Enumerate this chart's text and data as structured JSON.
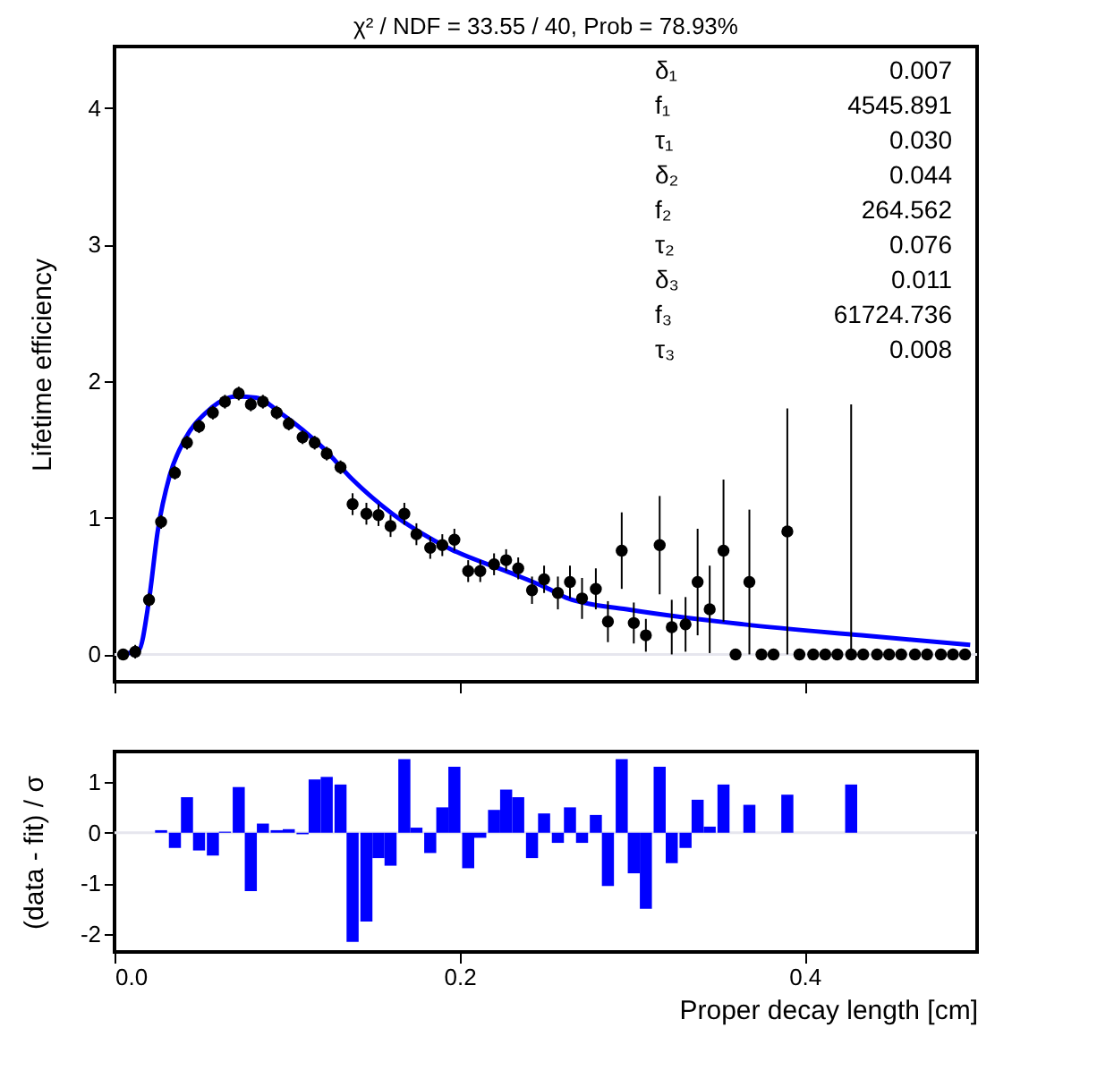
{
  "chart_data": [
    {
      "type": "scatter",
      "title": "χ² / NDF = 33.55 / 40, Prob = 78.93%",
      "ylabel": "Lifetime efficiency",
      "xlim": [
        0,
        0.5
      ],
      "xticks": [
        {
          "value": 0,
          "label": null
        },
        {
          "value": 0.2,
          "label": null
        },
        {
          "value": 0.4,
          "label": null
        }
      ],
      "ylim": [
        -0.2,
        4.45
      ],
      "yticks": [
        0,
        1,
        2,
        3,
        4
      ],
      "tick_labels": "y",
      "grid": false,
      "series": [
        {
          "type": "scatter",
          "color": "#000000",
          "marker": "circle",
          "x": [
            0.005,
            0.012,
            0.02,
            0.027,
            0.035,
            0.042,
            0.049,
            0.057,
            0.064,
            0.072,
            0.079,
            0.086,
            0.094,
            0.101,
            0.109,
            0.116,
            0.123,
            0.131,
            0.138,
            0.146,
            0.153,
            0.16,
            0.168,
            0.175,
            0.183,
            0.19,
            0.197,
            0.205,
            0.212,
            0.22,
            0.227,
            0.234,
            0.242,
            0.249,
            0.257,
            0.264,
            0.271,
            0.279,
            0.286,
            0.294,
            0.301,
            0.308,
            0.316,
            0.323,
            0.331,
            0.338,
            0.345,
            0.353,
            0.36,
            0.368,
            0.375,
            0.382,
            0.39,
            0.397,
            0.405,
            0.412,
            0.419,
            0.427,
            0.434,
            0.442,
            0.449,
            0.456,
            0.464,
            0.471,
            0.479,
            0.486,
            0.493
          ],
          "values": [
            0.0,
            0.02,
            0.4,
            0.97,
            1.33,
            1.55,
            1.67,
            1.77,
            1.85,
            1.91,
            1.83,
            1.85,
            1.77,
            1.69,
            1.59,
            1.55,
            1.47,
            1.37,
            1.1,
            1.03,
            1.02,
            0.94,
            1.03,
            0.88,
            0.78,
            0.8,
            0.84,
            0.61,
            0.61,
            0.66,
            0.69,
            0.63,
            0.47,
            0.55,
            0.45,
            0.53,
            0.41,
            0.48,
            0.24,
            0.76,
            0.23,
            0.14,
            0.8,
            0.2,
            0.22,
            0.53,
            0.33,
            0.76,
            0.0,
            0.53,
            0.0,
            0.0,
            0.9,
            0.0,
            0.0,
            0.0,
            0.0,
            0.0,
            0.0,
            0.0,
            0.0,
            0.0,
            0.0,
            0.0,
            0.0,
            0.0,
            0.0
          ],
          "errors": [
            null,
            0.05,
            0.05,
            0.05,
            0.05,
            0.05,
            0.05,
            0.05,
            0.05,
            0.05,
            0.05,
            0.05,
            0.05,
            0.05,
            0.05,
            0.05,
            0.05,
            0.05,
            0.08,
            0.08,
            0.08,
            0.08,
            0.08,
            0.08,
            0.08,
            0.08,
            0.08,
            0.08,
            0.08,
            0.08,
            0.08,
            0.08,
            0.1,
            0.1,
            0.12,
            0.12,
            0.15,
            0.15,
            0.15,
            0.28,
            0.15,
            0.12,
            0.36,
            0.2,
            0.2,
            0.39,
            0.32,
            0.52,
            null,
            0.53,
            null,
            null,
            0.9,
            null,
            null,
            null,
            null,
            [
              0,
              1.83
            ],
            null,
            null,
            null,
            null,
            null,
            null,
            null,
            null,
            null
          ]
        },
        {
          "type": "line",
          "color": "#0000ff",
          "x": [
            0.003,
            0.014,
            0.02,
            0.025,
            0.032,
            0.041,
            0.053,
            0.071,
            0.082,
            0.097,
            0.121,
            0.138,
            0.161,
            0.195,
            0.229,
            0.25,
            0.263,
            0.297,
            0.365,
            0.433,
            0.496
          ],
          "values": [
            0.0,
            0.03,
            0.4,
            0.9,
            1.31,
            1.58,
            1.77,
            1.89,
            1.88,
            1.76,
            1.51,
            1.28,
            1.03,
            0.77,
            0.6,
            0.49,
            0.41,
            0.33,
            0.22,
            0.14,
            0.07
          ]
        }
      ],
      "ref_lines": [
        {
          "axis": "y",
          "value": 0,
          "color": "#e6e6ee"
        }
      ],
      "annotations": [
        "δ₁ 0.007",
        "f₁ 4545.891",
        "τ₁ 0.030",
        "δ₂ 0.044",
        "f₂ 264.562",
        "τ₂ 0.076",
        "δ₃ 0.011",
        "f₃ 61724.736",
        "τ₃ 0.008"
      ]
    },
    {
      "type": "bar",
      "xlabel": "Proper decay length [cm]",
      "ylabel": "(data - fit) / σ",
      "xlim": [
        0,
        0.5
      ],
      "xticks": [
        {
          "value": 0,
          "label": "0.0"
        },
        {
          "value": 0.2,
          "label": "0.2"
        },
        {
          "value": 0.4,
          "label": "0.4"
        }
      ],
      "ylim": [
        -2.35,
        1.6
      ],
      "yticks": [
        -2,
        -1,
        0,
        1
      ],
      "grid": false,
      "series": [
        {
          "color": "#0000ff",
          "x": [
            0.027,
            0.035,
            0.042,
            0.049,
            0.057,
            0.064,
            0.072,
            0.079,
            0.086,
            0.094,
            0.101,
            0.109,
            0.116,
            0.123,
            0.131,
            0.138,
            0.146,
            0.153,
            0.16,
            0.168,
            0.175,
            0.183,
            0.19,
            0.197,
            0.205,
            0.212,
            0.22,
            0.227,
            0.234,
            0.242,
            0.249,
            0.257,
            0.264,
            0.271,
            0.279,
            0.286,
            0.294,
            0.301,
            0.308,
            0.316,
            0.323,
            0.331,
            0.338,
            0.345,
            0.353,
            0.368,
            0.39,
            0.427
          ],
          "values": [
            0.05,
            -0.3,
            0.7,
            -0.35,
            -0.45,
            0.02,
            0.9,
            -1.15,
            0.18,
            0.05,
            0.07,
            -0.03,
            1.05,
            1.1,
            0.95,
            -2.15,
            -1.75,
            -0.5,
            -0.65,
            1.45,
            0.1,
            -0.4,
            0.5,
            1.3,
            -0.7,
            -0.1,
            0.45,
            0.85,
            0.7,
            -0.5,
            0.38,
            -0.2,
            0.5,
            -0.2,
            0.35,
            -1.05,
            1.45,
            -0.8,
            -1.5,
            1.3,
            -0.6,
            -0.3,
            0.65,
            0.12,
            0.95,
            0.55,
            0.75,
            0.95
          ]
        }
      ],
      "ref_lines": [
        {
          "axis": "y",
          "value": 0,
          "color": "#e6e6ee"
        }
      ]
    }
  ]
}
